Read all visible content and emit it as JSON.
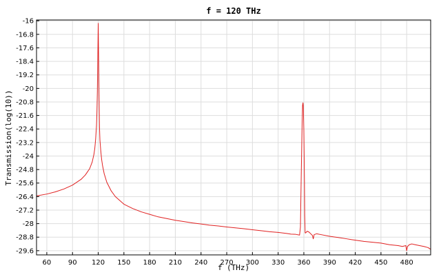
{
  "chart_data": {
    "type": "line",
    "title": "f = 120 THz",
    "xlabel": "f (THz)",
    "ylabel": "Transmission(log(10))",
    "xlim": [
      48,
      508
    ],
    "ylim": [
      -29.85,
      -15.95
    ],
    "x_ticks": [
      60,
      90,
      120,
      150,
      180,
      210,
      240,
      270,
      300,
      330,
      360,
      390,
      420,
      450,
      480
    ],
    "y_ticks": [
      -16,
      -16.8,
      -17.6,
      -18.4,
      -19.2,
      -20,
      -20.8,
      -21.6,
      -22.4,
      -23.2,
      -24,
      -24.8,
      -25.6,
      -26.4,
      -27.2,
      -28,
      -28.8,
      -29.6
    ],
    "grid": true,
    "line_color": "#e02020",
    "series": [
      {
        "x": [
          48,
          60,
          70,
          80,
          90,
          100,
          105,
          110,
          113,
          115,
          116,
          117,
          118,
          118.5,
          119,
          119.5,
          120,
          120.5,
          121,
          121.5,
          122,
          123,
          124,
          125,
          127,
          130,
          135,
          140,
          150,
          160,
          170,
          180,
          190,
          200,
          210,
          220,
          230,
          240,
          250,
          260,
          270,
          280,
          290,
          300,
          310,
          320,
          330,
          340,
          345,
          350,
          355,
          356,
          357,
          358,
          358.5,
          359,
          359.3,
          360,
          360.7,
          361,
          361.5,
          362,
          363,
          364,
          366,
          368,
          370,
          371,
          372,
          375,
          380,
          390,
          400,
          410,
          420,
          430,
          440,
          450,
          460,
          470,
          475,
          479,
          480,
          481,
          483,
          486,
          490,
          495,
          500,
          505,
          508
        ],
        "y": [
          -26.36,
          -26.25,
          -26.12,
          -25.95,
          -25.72,
          -25.38,
          -25.12,
          -24.75,
          -24.35,
          -23.9,
          -23.55,
          -23.0,
          -22.2,
          -21.4,
          -20.2,
          -18.3,
          -16.15,
          -18.3,
          -20.4,
          -22.3,
          -23.05,
          -23.7,
          -24.2,
          -24.55,
          -25.05,
          -25.55,
          -26.05,
          -26.4,
          -26.85,
          -27.1,
          -27.3,
          -27.45,
          -27.6,
          -27.7,
          -27.8,
          -27.88,
          -27.96,
          -28.02,
          -28.09,
          -28.14,
          -28.2,
          -28.25,
          -28.3,
          -28.36,
          -28.42,
          -28.48,
          -28.52,
          -28.58,
          -28.62,
          -28.63,
          -28.68,
          -28.2,
          -25.0,
          -22.0,
          -21.0,
          -20.85,
          -21.0,
          -22.5,
          -25.5,
          -27.5,
          -28.55,
          -28.55,
          -28.5,
          -28.45,
          -28.5,
          -28.6,
          -28.7,
          -28.9,
          -28.65,
          -28.6,
          -28.65,
          -28.75,
          -28.82,
          -28.9,
          -28.98,
          -29.05,
          -29.1,
          -29.15,
          -29.25,
          -29.3,
          -29.35,
          -29.3,
          -29.6,
          -29.35,
          -29.25,
          -29.2,
          -29.25,
          -29.3,
          -29.35,
          -29.42,
          -29.52
        ]
      }
    ]
  }
}
